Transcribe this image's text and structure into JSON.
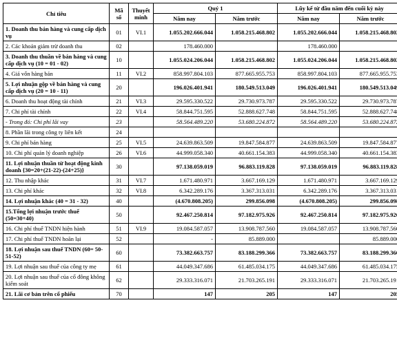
{
  "headers": {
    "chitieu": "Chỉ tiêu",
    "maso": "Mã số",
    "thuyetminh": "Thuyết minh",
    "quy1": "Quý 1",
    "luyke": "Lũy kế từ đầu năm đến cuối kỳ này",
    "namnay": "Năm nay",
    "namtruoc": "Năm trước"
  },
  "rows": [
    {
      "label": "1. Doanh thu bán hàng và cung cấp dịch vụ",
      "code": "01",
      "note": "VI.1",
      "v1": "1.055.202.666.044",
      "v2": "1.058.215.468.802",
      "v3": "1.055.202.666.044",
      "v4": "1.058.215.468.802",
      "bold": true
    },
    {
      "label": "2. Các khoản giảm trừ doanh thu",
      "code": "02",
      "note": "",
      "v1": "178.460.000",
      "v2": "",
      "v3": "178.460.000",
      "v4": "",
      "bold": false
    },
    {
      "label": "3. Doanh thu thuần về bán hàng và cung cấp dịch vụ (10 = 01 - 02)",
      "code": "10",
      "note": "",
      "v1": "1.055.024.206.044",
      "v2": "1.058.215.468.802",
      "v3": "1.055.024.206.044",
      "v4": "1.058.215.468.802",
      "bold": true
    },
    {
      "label": "4. Giá vốn hàng bán",
      "code": "11",
      "note": "VI.2",
      "v1": "858.997.804.103",
      "v2": "877.665.955.753",
      "v3": "858.997.804.103",
      "v4": "877.665.955.753",
      "bold": false
    },
    {
      "label": "5. Lợi nhuận gộp về bán hàng và cung cấp dịch vụ (20 = 10 - 11)",
      "code": "20",
      "note": "",
      "v1": "196.026.401.941",
      "v2": "180.549.513.049",
      "v3": "196.026.401.941",
      "v4": "180.549.513.049",
      "bold": true
    },
    {
      "label": "6. Doanh thu hoạt động tài chính",
      "code": "21",
      "note": "VI.3",
      "v1": "29.595.330.522",
      "v2": "29.730.973.787",
      "v3": "29.595.330.522",
      "v4": "29.730.973.787",
      "bold": false
    },
    {
      "label": "7. Chi phí tài chính",
      "code": "22",
      "note": "VI.4",
      "v1": "58.844.751.595",
      "v2": "52.888.627.748",
      "v3": "58.844.751.595",
      "v4": "52.888.627.748",
      "bold": false
    },
    {
      "label": "  - Trong đó: Chi phí lãi vay",
      "code": "23",
      "note": "",
      "v1": "58.564.489.220",
      "v2": "53.680.224.872",
      "v3": "58.564.489.220",
      "v4": "53.680.224.872",
      "bold": false,
      "italic": true
    },
    {
      "label": "8. Phần lãi trong công ty liên kết",
      "code": "24",
      "note": "",
      "v1": "",
      "v2": "",
      "v3": "",
      "v4": "",
      "bold": false
    },
    {
      "label": "9. Chi phí bán hàng",
      "code": "25",
      "note": "VI.5",
      "v1": "24.639.863.509",
      "v2": "19.847.584.877",
      "v3": "24.639.863.509",
      "v4": "19.847.584.877",
      "bold": false
    },
    {
      "label": "10. Chi phí quản lý doanh nghiệp",
      "code": "26",
      "note": "VI.6",
      "v1": "44.999.058.340",
      "v2": "40.661.154.383",
      "v3": "44.999.058.340",
      "v4": "40.661.154.383",
      "bold": false
    },
    {
      "label": "11. Lợi nhuận thuần từ hoạt động kinh doanh {30=20+(21-22)-(24+25)}",
      "code": "30",
      "note": "",
      "v1": "97.138.059.019",
      "v2": "96.883.119.828",
      "v3": "97.138.059.019",
      "v4": "96.883.119.828",
      "bold": true
    },
    {
      "label": "12. Thu nhập khác",
      "code": "31",
      "note": "VI.7",
      "v1": "1.671.480.971",
      "v2": "3.667.169.129",
      "v3": "1.671.480.971",
      "v4": "3.667.169.129",
      "bold": false
    },
    {
      "label": "13. Chi phí khác",
      "code": "32",
      "note": "VI.8",
      "v1": "6.342.289.176",
      "v2": "3.367.313.031",
      "v3": "6.342.289.176",
      "v4": "3.367.313.031",
      "bold": false
    },
    {
      "label": "14. Lợi nhuận khác (40 = 31 - 32)",
      "code": "40",
      "note": "",
      "v1": "(4.670.808.205)",
      "v2": "299.856.098",
      "v3": "(4.670.808.205)",
      "v4": "299.856.098",
      "bold": true
    },
    {
      "label": "15.Tổng lợi nhuận trước thuế (50=30+40)",
      "code": "50",
      "note": "",
      "v1": "92.467.250.814",
      "v2": "97.182.975.926",
      "v3": "92.467.250.814",
      "v4": "97.182.975.926",
      "bold": true
    },
    {
      "label": "16. Chi phí thuế TNDN hiện hành",
      "code": "51",
      "note": "VI.9",
      "v1": "19.084.587.057",
      "v2": "13.908.787.560",
      "v3": "19.084.587.057",
      "v4": "13.908.787.560",
      "bold": false
    },
    {
      "label": "17. Chi phí thuế TNDN hoãn lại",
      "code": "52",
      "note": "",
      "v1": "-",
      "v2": "85.889.000",
      "v3": "",
      "v4": "85.889.000",
      "bold": false
    },
    {
      "label": "18. Lợi nhuận sau thuế TNDN (60= 50-51-52)",
      "code": "60",
      "note": "",
      "v1": "73.382.663.757",
      "v2": "83.188.299.366",
      "v3": "73.382.663.757",
      "v4": "83.188.299.366",
      "bold": true
    },
    {
      "label": "19. Lợi nhuận sau thuế của công ty mẹ",
      "code": "61",
      "note": "",
      "v1": "44.049.347.686",
      "v2": "61.485.034.175",
      "v3": "44.049.347.686",
      "v4": "61.485.034.175",
      "bold": false
    },
    {
      "label": "20. Lợi nhuận sau thuế của cổ đông không kiểm soát",
      "code": "62",
      "note": "",
      "v1": "29.333.316.071",
      "v2": "21.703.265.191",
      "v3": "29.333.316.071",
      "v4": "21.703.265.191",
      "bold": false
    },
    {
      "label": "21. Lãi cơ bản trên cổ phiếu",
      "code": "70",
      "note": "",
      "v1": "147",
      "v2": "205",
      "v3": "147",
      "v4": "205",
      "bold": true
    }
  ]
}
